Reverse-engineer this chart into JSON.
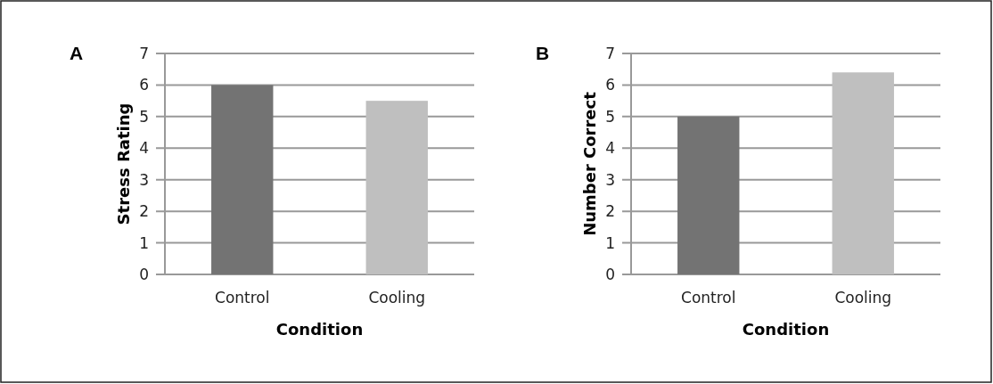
{
  "chart_data": [
    {
      "type": "bar",
      "title": "A",
      "xlabel": "Condition",
      "ylabel": "Stress Rating",
      "categories": [
        "Control",
        "Cooling"
      ],
      "values": [
        6.0,
        5.5
      ],
      "colors": [
        "#737373",
        "#bfbfbf"
      ],
      "ylim": [
        0,
        7
      ],
      "yticks": [
        0,
        1,
        2,
        3,
        4,
        5,
        6,
        7
      ],
      "grid": "y"
    },
    {
      "type": "bar",
      "title": "B",
      "xlabel": "Condition",
      "ylabel": "Number Correct",
      "categories": [
        "Control",
        "Cooling"
      ],
      "values": [
        5.0,
        6.4
      ],
      "colors": [
        "#737373",
        "#bfbfbf"
      ],
      "ylim": [
        0,
        7
      ],
      "yticks": [
        0,
        1,
        2,
        3,
        4,
        5,
        6,
        7
      ],
      "grid": "y"
    }
  ]
}
